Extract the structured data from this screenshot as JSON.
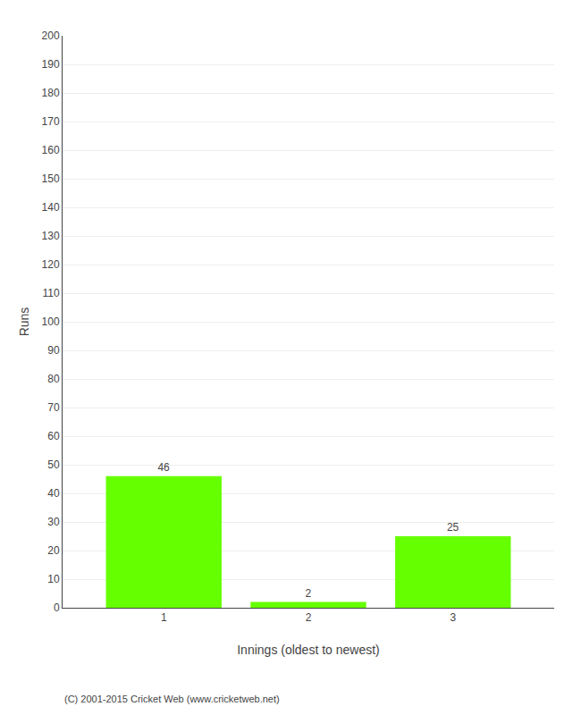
{
  "chart_data": {
    "type": "bar",
    "categories": [
      "1",
      "2",
      "3"
    ],
    "values": [
      46,
      2,
      25
    ],
    "color": "#66ff00",
    "xlabel": "Innings (oldest to newest)",
    "ylabel": "Runs",
    "ylim": [
      0,
      200
    ],
    "yticks": [
      0,
      10,
      20,
      30,
      40,
      50,
      60,
      70,
      80,
      90,
      100,
      110,
      120,
      130,
      140,
      150,
      160,
      170,
      180,
      190,
      200
    ],
    "grid": true,
    "data_labels": true,
    "annotations": [
      "(C) 2001-2015 Cricket Web (www.cricketweb.net)"
    ]
  }
}
